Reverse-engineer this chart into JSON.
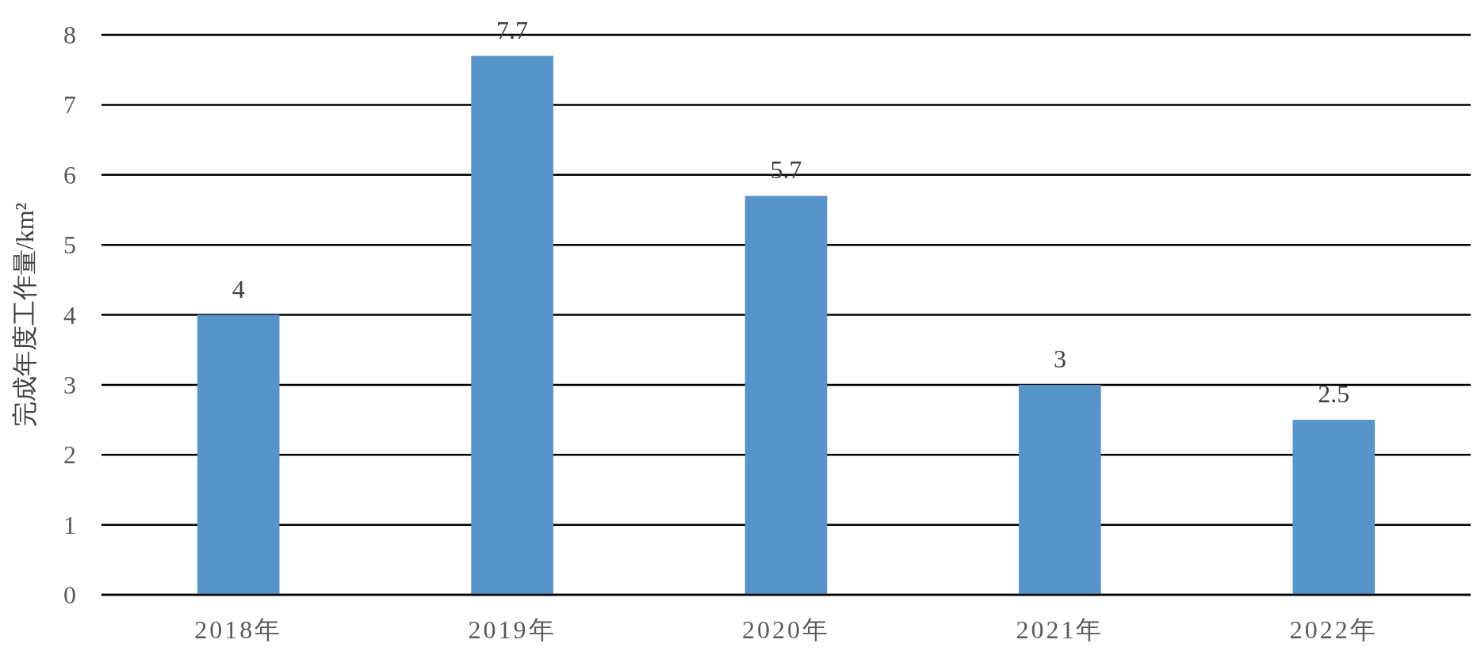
{
  "chart_data": {
    "type": "bar",
    "ylabel": "完成年度工作量/km²",
    "categories": [
      "2018年",
      "2019年",
      "2020年",
      "2021年",
      "2022年"
    ],
    "series": [
      {
        "color": "#5794c9",
        "values": [
          4,
          7.7,
          5.7,
          3,
          2.5
        ]
      }
    ],
    "ylim": [
      0,
      8
    ],
    "yticks": [
      0,
      1,
      2,
      3,
      4,
      5,
      6,
      7,
      8
    ],
    "grid": "y",
    "data_labels": true
  }
}
